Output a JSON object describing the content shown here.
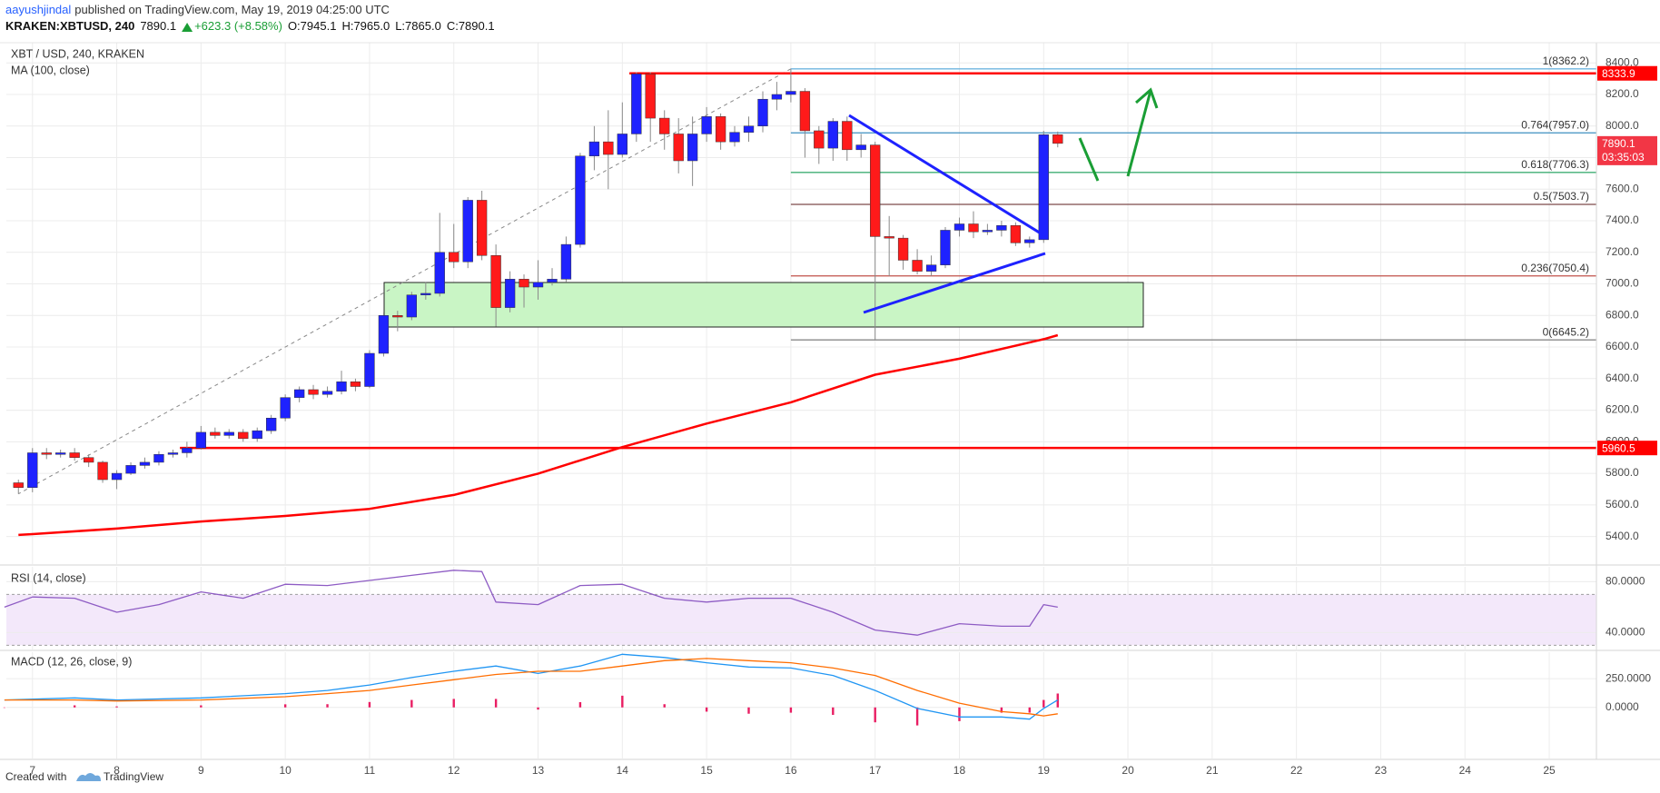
{
  "header": {
    "author": "aayushjindal",
    "published": "published on TradingView.com, May 19, 2019 04:25:00 UTC",
    "symbol": "KRAKEN:XBTUSD, 240",
    "last": "7890.1",
    "change": "+623.3 (+8.58%)",
    "ohlc": [
      "O:7945.1",
      "H:7965.0",
      "L:7865.0",
      "C:7890.1"
    ]
  },
  "footer": {
    "text": "Created with",
    "brand": "TradingView"
  },
  "chart_data": [
    {
      "type": "candlestick",
      "title": "XBT / USD, 240, KRAKEN",
      "x": [
        6.833,
        7,
        7.167,
        7.333,
        7.5,
        7.667,
        7.833,
        8,
        8.167,
        8.333,
        8.5,
        8.667,
        8.833,
        9,
        9.167,
        9.333,
        9.5,
        9.667,
        9.833,
        10,
        10.167,
        10.333,
        10.5,
        10.667,
        10.833,
        11,
        11.167,
        11.333,
        11.5,
        11.667,
        11.833,
        12,
        12.167,
        12.333,
        12.5,
        12.667,
        12.833,
        13,
        13.167,
        13.333,
        13.5,
        13.667,
        13.833,
        14,
        14.167,
        14.333,
        14.5,
        14.667,
        14.833,
        15,
        15.167,
        15.333,
        15.5,
        15.667,
        15.833,
        16,
        16.167,
        16.333,
        16.5,
        16.667,
        16.833,
        17,
        17.167,
        17.333,
        17.5,
        17.667,
        17.833,
        18,
        18.167,
        18.333,
        18.5,
        18.667,
        18.833,
        19,
        19.167
      ],
      "open": [
        5740,
        5710,
        5930,
        5920,
        5930,
        5900,
        5870,
        5760,
        5800,
        5850,
        5870,
        5920,
        5930,
        5960,
        6060,
        6040,
        6060,
        6020,
        6070,
        6150,
        6280,
        6330,
        6300,
        6320,
        6380,
        6350,
        6560,
        6800,
        6790,
        6930,
        6940,
        7200,
        7140,
        7530,
        7180,
        6850,
        7030,
        6980,
        7010,
        7030,
        7250,
        7810,
        7900,
        7820,
        7950,
        8330,
        8050,
        7950,
        7780,
        7950,
        8060,
        7900,
        7960,
        8000,
        8170,
        8200,
        8220,
        7970,
        7860,
        8030,
        7850,
        7880,
        7300,
        7290,
        7150,
        7080,
        7120,
        7340,
        7380,
        7330,
        7340,
        7370,
        7260,
        7280,
        7945.1
      ],
      "high": [
        5760,
        5960,
        5960,
        5950,
        5960,
        5920,
        5880,
        5820,
        5870,
        5900,
        5940,
        5950,
        6000,
        6100,
        6090,
        6080,
        6080,
        6090,
        6170,
        6300,
        6350,
        6360,
        6350,
        6450,
        6400,
        6580,
        6820,
        6830,
        6950,
        7010,
        7450,
        7380,
        7550,
        7590,
        7250,
        7080,
        7060,
        7150,
        7100,
        7300,
        7830,
        8000,
        8100,
        8150,
        8340,
        8340,
        8100,
        8050,
        8060,
        8120,
        8080,
        8000,
        8060,
        8220,
        8280,
        8362.2,
        8240,
        8000,
        8050,
        8060,
        7950,
        7900,
        7430,
        7310,
        7220,
        7180,
        7360,
        7420,
        7460,
        7380,
        7400,
        7390,
        7300,
        7970,
        7965.0
      ],
      "low": [
        5670,
        5680,
        5890,
        5900,
        5880,
        5840,
        5740,
        5700,
        5790,
        5830,
        5850,
        5900,
        5900,
        5950,
        6020,
        6020,
        6000,
        6000,
        6050,
        6130,
        6250,
        6270,
        6280,
        6300,
        6320,
        6340,
        6540,
        6700,
        6770,
        6900,
        6920,
        7100,
        7100,
        7150,
        6730,
        6820,
        6850,
        6900,
        6990,
        7010,
        7230,
        7720,
        7600,
        7800,
        7900,
        7900,
        7850,
        7700,
        7620,
        7900,
        7850,
        7870,
        7900,
        7960,
        8100,
        8150,
        7800,
        7760,
        7780,
        7780,
        7800,
        6645.2,
        7050,
        7090,
        7060,
        7050,
        7100,
        7300,
        7290,
        7310,
        7300,
        7240,
        7230,
        7260,
        7865.0
      ],
      "close": [
        5710,
        5930,
        5920,
        5930,
        5900,
        5870,
        5760,
        5800,
        5850,
        5870,
        5920,
        5930,
        5960,
        6060,
        6040,
        6060,
        6020,
        6070,
        6150,
        6280,
        6330,
        6300,
        6320,
        6380,
        6350,
        6560,
        6800,
        6790,
        6930,
        6940,
        7200,
        7140,
        7530,
        7180,
        6850,
        7030,
        6980,
        7010,
        7030,
        7250,
        7810,
        7900,
        7820,
        7950,
        8330,
        8050,
        7950,
        7780,
        7950,
        8060,
        7900,
        7960,
        8000,
        8170,
        8200,
        8220,
        7970,
        7860,
        8030,
        7850,
        7880,
        7300,
        7290,
        7150,
        7080,
        7120,
        7340,
        7380,
        7330,
        7340,
        7370,
        7260,
        7280,
        7945.1,
        7890.1
      ],
      "up_color": "#1e22ff",
      "down_color": "#ff1a1a",
      "wick_color": "#8a8a8a",
      "series": [
        {
          "name": "MA (100, close)",
          "color": "#ff0000",
          "x": [
            6.833,
            7,
            8,
            9,
            10,
            11,
            12,
            13,
            14,
            15,
            16,
            17,
            18,
            19,
            19.167
          ],
          "values": [
            5410,
            5415,
            5450,
            5495,
            5530,
            5575,
            5663,
            5798,
            5966,
            6115,
            6250,
            6425,
            6526,
            6650,
            6675
          ]
        }
      ],
      "fib_levels": [
        {
          "label": "1(8362.2)",
          "value": 8362.2,
          "color": "#6fb4df"
        },
        {
          "label": "0.764(7957.0)",
          "value": 7957.0,
          "color": "#3d8fc0"
        },
        {
          "label": "0.618(7706.3)",
          "value": 7706.3,
          "color": "#3fae74"
        },
        {
          "label": "0.5(7503.7)",
          "value": 7503.7,
          "color": "#7d4b4b"
        },
        {
          "label": "0.236(7050.4)",
          "value": 7050.4,
          "color": "#c0504a"
        },
        {
          "label": "0(6645.2)",
          "value": 6645.2,
          "color": "#8a8a8a"
        }
      ],
      "hlines": [
        {
          "value": 8333.9,
          "color": "#ff0000"
        },
        {
          "value": 5960.5,
          "color": "#ff0000"
        }
      ],
      "last_price": 7890.1,
      "countdown": "03:35:03",
      "tag_color": "#f23645",
      "xlim": [
        6.69,
        25.56
      ],
      "xticks": [
        7,
        8,
        9,
        10,
        11,
        12,
        13,
        14,
        15,
        16,
        17,
        18,
        19,
        20,
        21,
        22,
        23,
        24,
        25
      ],
      "ylim": [
        5225,
        8528
      ],
      "yticks": [
        {
          "value": 5400,
          "label": "5400.0"
        },
        {
          "value": 5600,
          "label": "5600.0"
        },
        {
          "value": 5800,
          "label": "5800.0"
        },
        {
          "value": 6000,
          "label": "6000.0"
        },
        {
          "value": 6200,
          "label": "6200.0"
        },
        {
          "value": 6400,
          "label": "6400.0"
        },
        {
          "value": 6600,
          "label": "6600.0"
        },
        {
          "value": 6800,
          "label": "6800.0"
        },
        {
          "value": 7000,
          "label": "7000.0"
        },
        {
          "value": 7200,
          "label": "7200.0"
        },
        {
          "value": 7400,
          "label": "7400.0"
        },
        {
          "value": 7600,
          "label": "7600.0"
        },
        {
          "value": 7800,
          "label": "7800.0"
        },
        {
          "value": 8000,
          "label": "8000.0"
        },
        {
          "value": 8200,
          "label": "8200.0"
        },
        {
          "value": 8400,
          "label": "8400.0"
        }
      ],
      "grid": true,
      "grid_color": "#ececec"
    },
    {
      "type": "line",
      "title": "RSI (14, close)",
      "x": [
        6.667,
        7,
        7.5,
        8,
        8.5,
        9,
        9.5,
        10,
        10.5,
        11,
        11.5,
        12,
        12.333,
        12.5,
        13,
        13.5,
        14,
        14.5,
        15,
        15.5,
        16,
        16.5,
        17,
        17.5,
        18,
        18.5,
        18.833,
        19,
        19.167
      ],
      "values": [
        60,
        68,
        67,
        56,
        62,
        72,
        67,
        78,
        77,
        81,
        85,
        89,
        88,
        64,
        62,
        77,
        78,
        67,
        64,
        67,
        67,
        56,
        42,
        38,
        47,
        45,
        45,
        62,
        60
      ],
      "color": "#8e5cc4",
      "band": [
        30,
        70
      ],
      "band_color": "#f3e8fa",
      "ylim": [
        26.7,
        91.7
      ],
      "yticks": [
        {
          "value": 40,
          "label": "40.0000"
        },
        {
          "value": 80,
          "label": "80.0000"
        }
      ],
      "grid": true,
      "grid_color": "#ececec"
    },
    {
      "type": "line",
      "title": "MACD (12, 26, close, 9)",
      "x": [
        6.667,
        7.5,
        8,
        9,
        10,
        10.5,
        11,
        11.5,
        12,
        12.5,
        13,
        13.5,
        14,
        14.5,
        15,
        15.5,
        16,
        16.5,
        17,
        17.5,
        18,
        18.5,
        18.833,
        19,
        19.167
      ],
      "series": [
        {
          "color": "#e91e63",
          "style": "histogram",
          "values": [
            0,
            18,
            9,
            18,
            27,
            28,
            47,
            65,
            74,
            74,
            -19,
            46,
            102,
            28,
            -37,
            -55,
            -46,
            -65,
            -130,
            -157,
            -120,
            -46,
            -46,
            65,
            121
          ]
        },
        {
          "color": "#2196f3",
          "values": [
            65,
            83,
            65,
            83,
            120,
            148,
            195,
            260,
            315,
            361,
            296,
            361,
            463,
            435,
            389,
            352,
            343,
            278,
            148,
            -9,
            -83,
            -83,
            -102,
            -9,
            65
          ]
        },
        {
          "color": "#ff6d00",
          "values": [
            65,
            65,
            56,
            65,
            93,
            120,
            148,
            195,
            241,
            287,
            315,
            315,
            361,
            407,
            426,
            407,
            389,
            343,
            278,
            148,
            37,
            -37,
            -56,
            -74,
            -56
          ]
        }
      ],
      "ylim": [
        -445,
        481
      ],
      "yticks": [
        {
          "value": 0,
          "label": "0.0000"
        },
        {
          "value": 250,
          "label": "250.0000"
        }
      ],
      "grid": true,
      "grid_color": "#ececec"
    }
  ]
}
